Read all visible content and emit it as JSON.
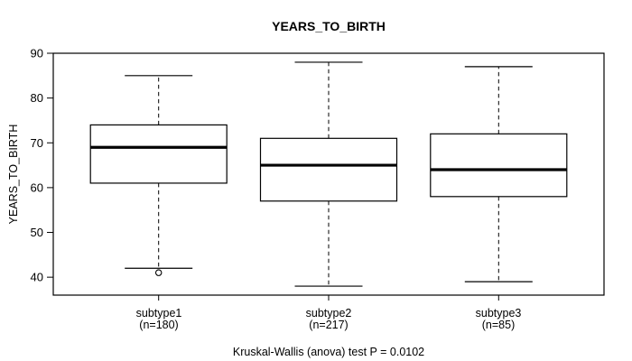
{
  "chart_data": {
    "type": "boxplot",
    "title": "YEARS_TO_BIRTH",
    "ylabel": "YEARS_TO_BIRTH",
    "xlabel": "",
    "ylim": [
      36,
      90
    ],
    "y_ticks": [
      40,
      50,
      60,
      70,
      80,
      90
    ],
    "grid": false,
    "legend": "none",
    "annotation": "Kruskal-Wallis (anova) test P = 0.0102",
    "groups": [
      {
        "label": "subtype1",
        "n_label": "(n=180)",
        "whisker_low": 42,
        "q1": 61,
        "median": 69,
        "q3": 74,
        "whisker_high": 85,
        "outliers": [
          41
        ]
      },
      {
        "label": "subtype2",
        "n_label": "(n=217)",
        "whisker_low": 38,
        "q1": 57,
        "median": 65,
        "q3": 71,
        "whisker_high": 88,
        "outliers": []
      },
      {
        "label": "subtype3",
        "n_label": "(n=85)",
        "whisker_low": 39,
        "q1": 58,
        "median": 64,
        "q3": 72,
        "whisker_high": 87,
        "outliers": []
      }
    ],
    "colors": {
      "line": "#000000",
      "box_fill": "#ffffff",
      "background": "#ffffff",
      "text": "#000000"
    }
  }
}
